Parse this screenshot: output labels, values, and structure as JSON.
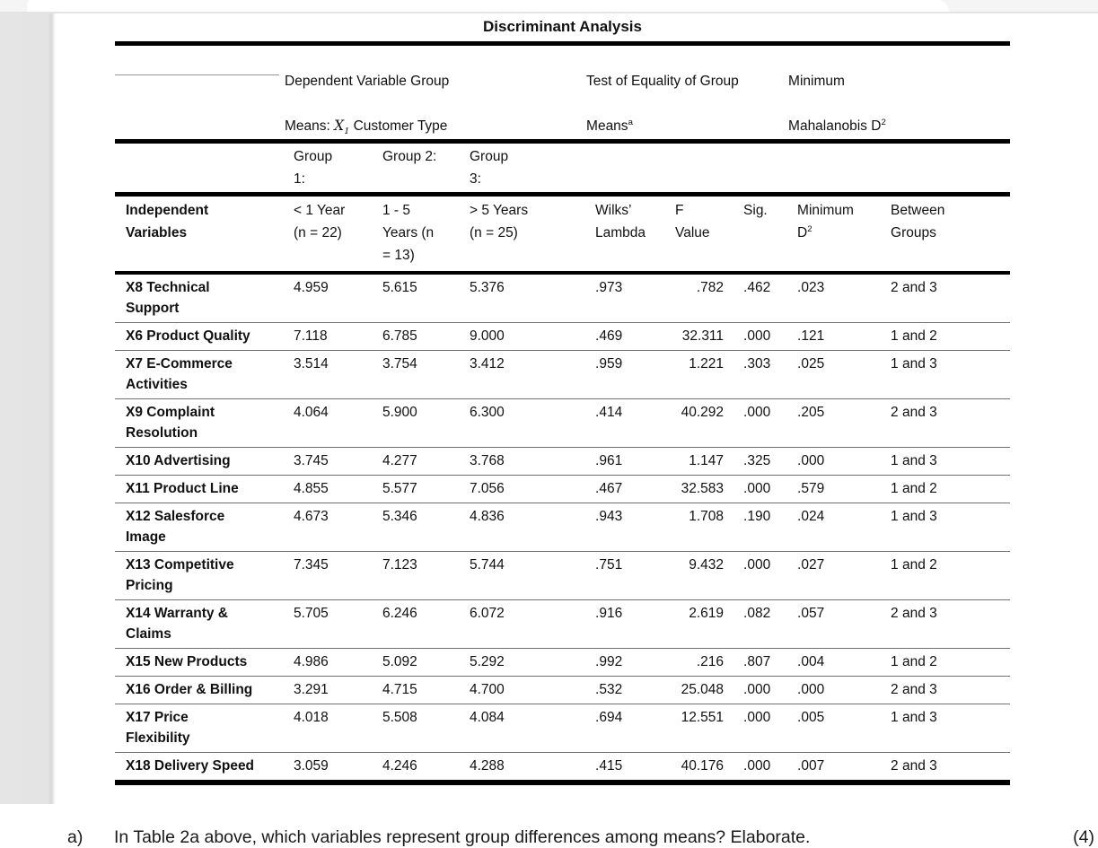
{
  "table": {
    "title": "Discriminant Analysis",
    "group_headers": {
      "dependent": {
        "line1": "Dependent Variable Group",
        "line2_prefix": "Means: ",
        "var": "X",
        "var_sub": "1",
        "line2_suffix": " Customer Type"
      },
      "test": {
        "line1": "Test of Equality of Group",
        "line2": "Means",
        "sup": "a"
      },
      "mahalanobis": {
        "line1": "Minimum",
        "line2": "Mahalanobis D",
        "sup": "2"
      }
    },
    "group_row": {
      "g1": "Group\n1:",
      "g2": "Group 2:",
      "g3": "Group\n3:"
    },
    "col_headers": {
      "stub": "Independent\nVariables",
      "g1": "< 1 Year\n(n = 22)",
      "g2": "1 - 5\nYears  (n\n= 13)",
      "g3": "> 5 Years\n(n = 25)",
      "wilks": "Wilks’\nLambda",
      "f": "F\nValue",
      "sig": "Sig.",
      "min_d_line1": "Minimum",
      "min_d_line2": "D",
      "min_d_sup": "2",
      "between": "Between\nGroups"
    },
    "rows": [
      {
        "variable": "X8 Technical\nSupport",
        "g1": "4.959",
        "g2": "5.615",
        "g3": "5.376",
        "wilks": ".973",
        "f": ".782",
        "sig": ".462",
        "min_d": ".023",
        "between": "2 and 3"
      },
      {
        "variable": "X6 Product Quality",
        "g1": "7.118",
        "g2": "6.785",
        "g3": "9.000",
        "wilks": ".469",
        "f": "32.311",
        "sig": ".000",
        "min_d": ".121",
        "between": "1 and 2"
      },
      {
        "variable": "X7 E-Commerce\nActivities",
        "g1": "3.514",
        "g2": "3.754",
        "g3": "3.412",
        "wilks": ".959",
        "f": "1.221",
        "sig": ".303",
        "min_d": ".025",
        "between": "1 and 3"
      },
      {
        "variable": "X9 Complaint\nResolution",
        "g1": "4.064",
        "g2": "5.900",
        "g3": "6.300",
        "wilks": ".414",
        "f": "40.292",
        "sig": ".000",
        "min_d": ".205",
        "between": "2 and 3"
      },
      {
        "variable": "X10 Advertising",
        "g1": "3.745",
        "g2": "4.277",
        "g3": "3.768",
        "wilks": ".961",
        "f": "1.147",
        "sig": ".325",
        "min_d": ".000",
        "between": "1 and 3"
      },
      {
        "variable": "X11 Product Line",
        "g1": "4.855",
        "g2": "5.577",
        "g3": "7.056",
        "wilks": ".467",
        "f": "32.583",
        "sig": ".000",
        "min_d": ".579",
        "between": "1 and 2"
      },
      {
        "variable": "X12 Salesforce\nImage",
        "g1": "4.673",
        "g2": "5.346",
        "g3": "4.836",
        "wilks": ".943",
        "f": "1.708",
        "sig": ".190",
        "min_d": ".024",
        "between": "1 and 3"
      },
      {
        "variable": "X13 Competitive\nPricing",
        "g1": "7.345",
        "g2": "7.123",
        "g3": "5.744",
        "wilks": ".751",
        "f": "9.432",
        "sig": ".000",
        "min_d": ".027",
        "between": "1 and 2"
      },
      {
        "variable": "X14 Warranty &\nClaims",
        "g1": "5.705",
        "g2": "6.246",
        "g3": "6.072",
        "wilks": ".916",
        "f": "2.619",
        "sig": ".082",
        "min_d": ".057",
        "between": "2 and 3"
      },
      {
        "variable": "X15 New Products",
        "g1": "4.986",
        "g2": "5.092",
        "g3": "5.292",
        "wilks": ".992",
        "f": ".216",
        "sig": ".807",
        "min_d": ".004",
        "between": "1 and 2"
      },
      {
        "variable": "X16 Order & Billing",
        "g1": "3.291",
        "g2": "4.715",
        "g3": "4.700",
        "wilks": ".532",
        "f": "25.048",
        "sig": ".000",
        "min_d": ".000",
        "between": "2 and 3"
      },
      {
        "variable": "X17 Price\nFlexibility",
        "g1": "4.018",
        "g2": "5.508",
        "g3": "4.084",
        "wilks": ".694",
        "f": "12.551",
        "sig": ".000",
        "min_d": ".005",
        "between": "1 and 3"
      },
      {
        "variable": "X18 Delivery Speed",
        "g1": "3.059",
        "g2": "4.246",
        "g3": "4.288",
        "wilks": ".415",
        "f": "40.176",
        "sig": ".000",
        "min_d": ".007",
        "between": "2 and 3"
      }
    ]
  },
  "question": {
    "label": "a)",
    "text": "In Table 2a above, which variables represent group differences among means? Elaborate.",
    "marks": "(4)"
  }
}
